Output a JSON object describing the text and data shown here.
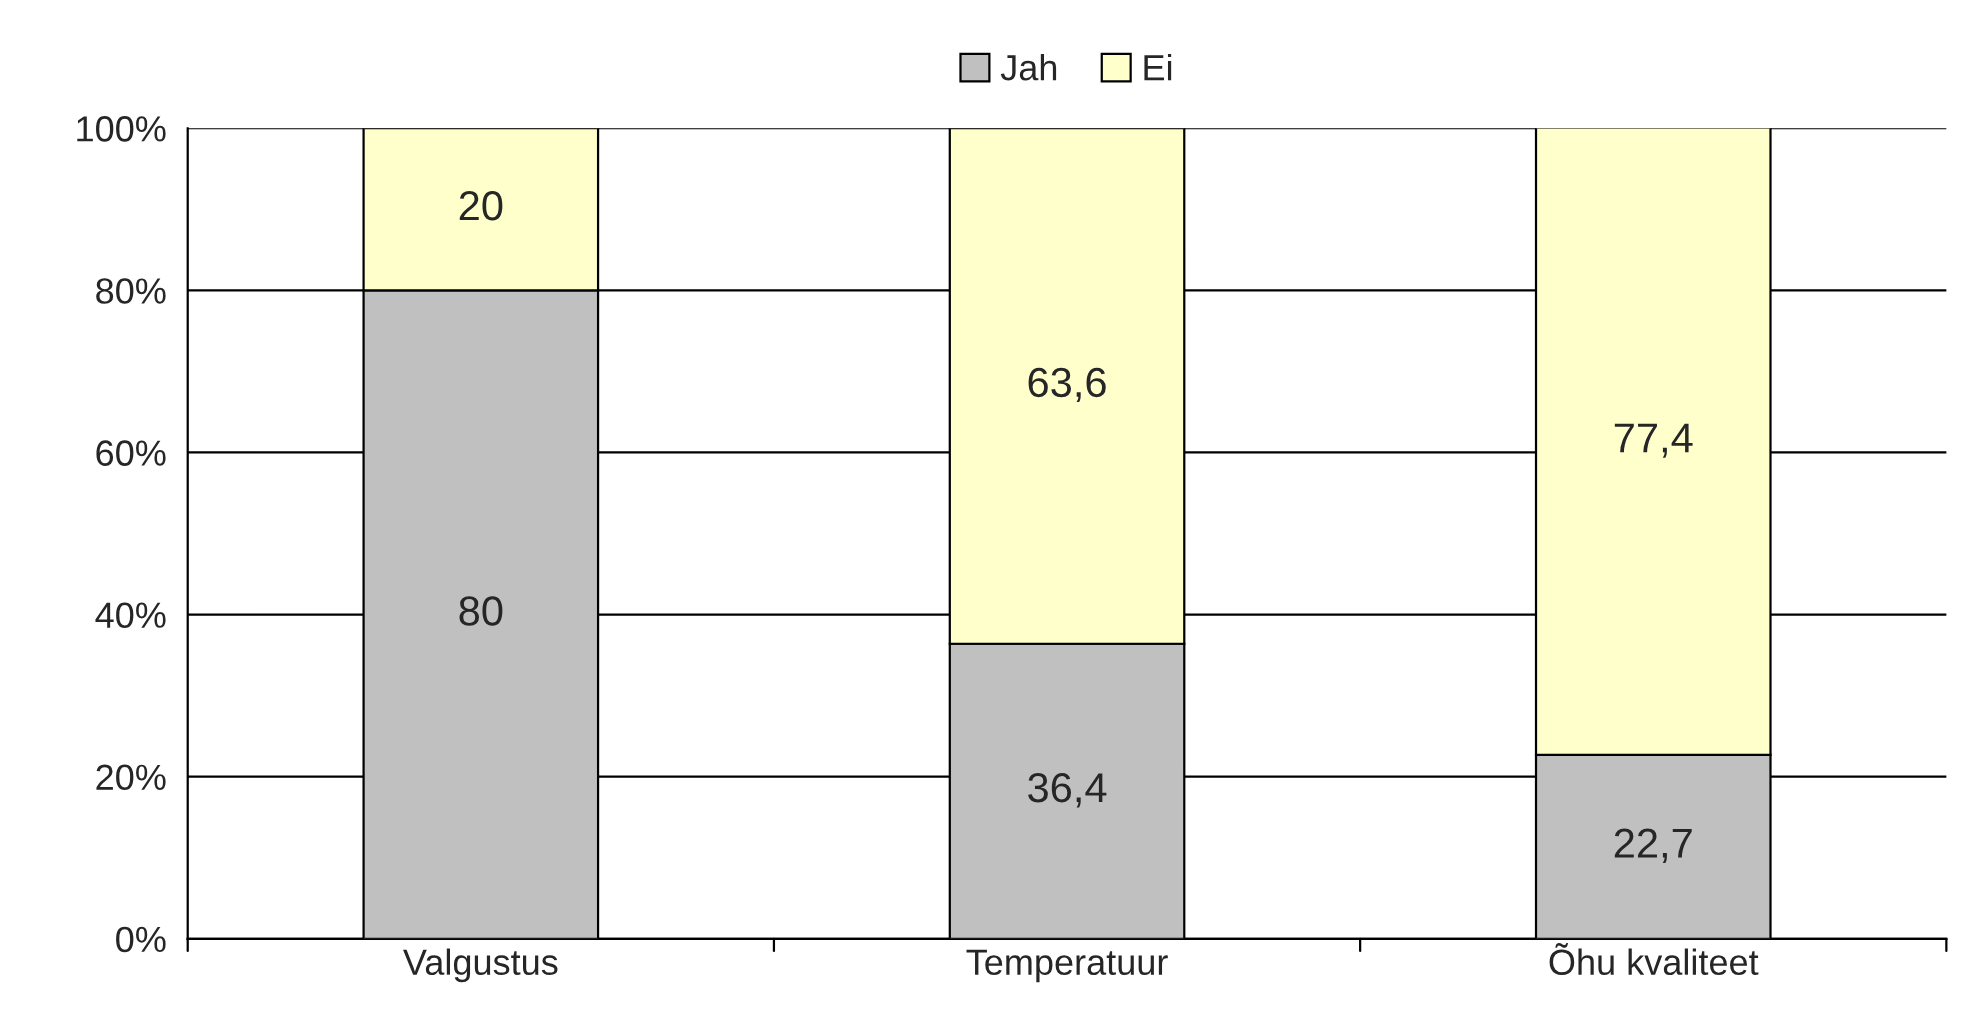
{
  "chart_data": {
    "type": "bar",
    "stacked": true,
    "categories": [
      "Valgustus",
      "Temperatuur",
      "Õhu kvaliteet"
    ],
    "series": [
      {
        "name": "Jah",
        "color": "#c0c0c0",
        "values": [
          80,
          36.4,
          22.7
        ],
        "value_labels": [
          "80",
          "36,4",
          "22,7"
        ]
      },
      {
        "name": "Ei",
        "color": "#ffffcc",
        "values": [
          20,
          63.6,
          77.4
        ],
        "value_labels": [
          "20",
          "63,6",
          "77,4"
        ]
      }
    ],
    "ylim": [
      0,
      100
    ],
    "yticks": [
      {
        "value": 0,
        "label": "0%"
      },
      {
        "value": 20,
        "label": "20%"
      },
      {
        "value": 40,
        "label": "40%"
      },
      {
        "value": 60,
        "label": "60%"
      },
      {
        "value": 80,
        "label": "80%"
      },
      {
        "value": 100,
        "label": "100%"
      }
    ],
    "grid": "y",
    "legend": "top"
  }
}
